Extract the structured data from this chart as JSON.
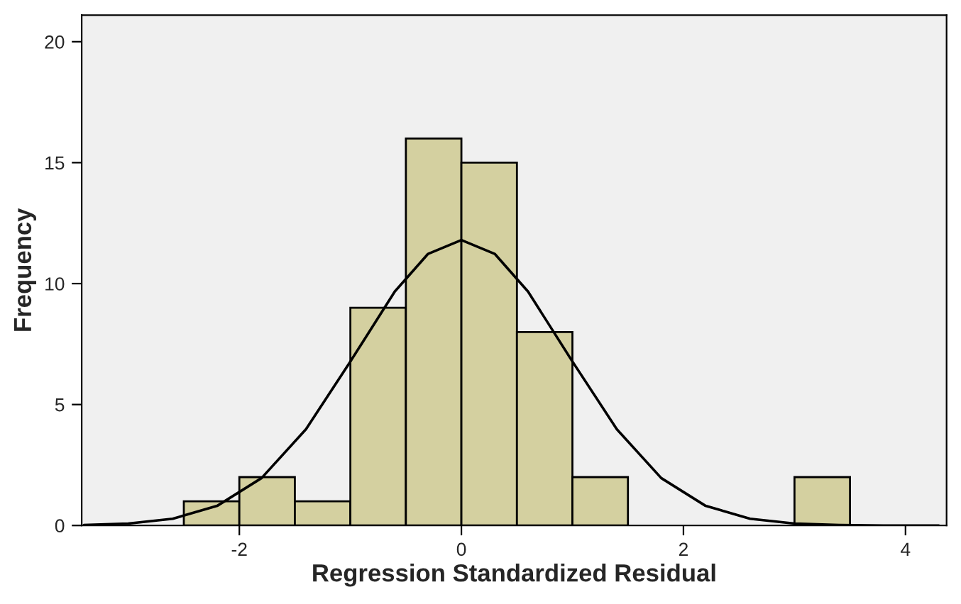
{
  "chart_data": {
    "type": "histogram",
    "xlabel": "Regression Standardized Residual",
    "ylabel": "Frequency",
    "bins": [
      -2.5,
      -2.0,
      -1.5,
      -1.0,
      -0.5,
      0.0,
      0.5,
      1.0,
      1.5,
      2.0,
      2.5,
      3.0,
      3.5
    ],
    "values": [
      1,
      2,
      1,
      9,
      16,
      15,
      8,
      2,
      0,
      0,
      0,
      2
    ],
    "color": "#d4d0a0",
    "series": [
      {
        "type": "line",
        "color": "#000000",
        "x": [
          -3.4,
          -3.0,
          -2.6,
          -2.2,
          -1.8,
          -1.4,
          -1.0,
          -0.6,
          -0.3,
          0.0,
          0.3,
          0.6,
          1.0,
          1.4,
          1.8,
          2.2,
          2.6,
          3.0,
          3.4,
          3.8,
          4.3
        ],
        "values": [
          0.02,
          0.08,
          0.28,
          0.81,
          1.96,
          3.98,
          6.78,
          9.67,
          11.23,
          11.8,
          11.23,
          9.67,
          6.78,
          3.98,
          1.96,
          0.81,
          0.28,
          0.08,
          0.02,
          0.0,
          0.0
        ]
      }
    ],
    "xlim": [
      -3.42,
      4.37
    ],
    "ylim": [
      0,
      21.1
    ],
    "xticks": [
      -2,
      0,
      2,
      4
    ],
    "yticks": [
      0,
      5,
      10,
      15,
      20
    ],
    "grid": false,
    "legend": false,
    "marker": "none",
    "line_style": "solid"
  }
}
